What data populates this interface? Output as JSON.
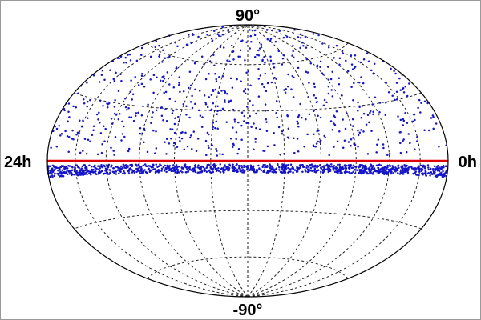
{
  "chart_data": {
    "type": "scatter",
    "projection": "hammer-aitoff",
    "title": "",
    "labels": {
      "north_pole": "90°",
      "south_pole": "-90°",
      "left_edge": "24h",
      "right_edge": "0h"
    },
    "grid": {
      "visible": true,
      "style": "dashed",
      "meridians_hours": [
        2,
        4,
        6,
        8,
        10,
        12,
        14,
        16,
        18,
        20,
        22
      ],
      "parallels_deg": [
        -60,
        -30,
        0,
        30,
        60
      ]
    },
    "reference_line": {
      "label": "",
      "dec_deg": 0,
      "color": "#e00000"
    },
    "series": [
      {
        "marker_color": "#1515c8",
        "distribution": {
          "sparse_northern_hemisphere": {
            "count": 680,
            "dec_range": [
              3,
              90
            ]
          },
          "dense_band_below_equator": {
            "count": 1150,
            "dec_range": [
              -7,
              -2
            ]
          }
        }
      }
    ],
    "colors": {
      "points": "#1515c8",
      "equator_line": "#e00000",
      "grid": "#222222",
      "outline": "#000000"
    }
  }
}
